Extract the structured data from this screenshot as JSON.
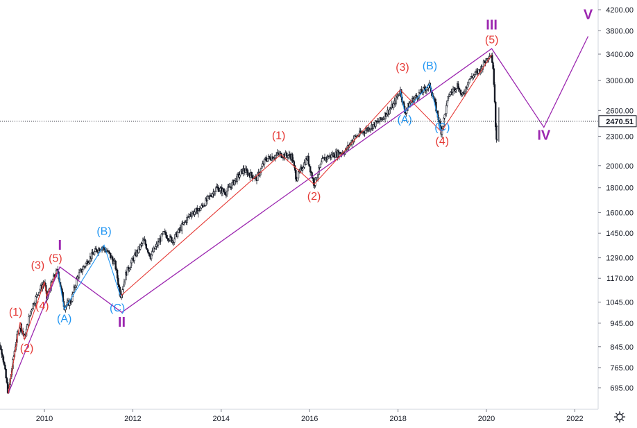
{
  "colors": {
    "background": "#ffffff",
    "candle": "#131722",
    "primary_wave": "#9c27b0",
    "intermediate_wave": "#e53935",
    "minor_wave": "#2196f3",
    "price_line": "#131722",
    "last_price_badge_bg": "#ffffff",
    "last_price_badge_text": "#131722"
  },
  "icons": {
    "settings": "gear-icon"
  },
  "chart_data": {
    "type": "candlestick",
    "scale": "log",
    "ylim": [
      640,
      4300
    ],
    "xlim": [
      2008.9,
      2022.7
    ],
    "yticks": [
      695,
      765,
      845,
      945,
      1045,
      1170,
      1290,
      1450,
      1600,
      1800,
      2000,
      2300,
      2600,
      3000,
      3400,
      3800,
      4200
    ],
    "ytick_labels": [
      "695.00",
      "765.00",
      "845.00",
      "945.00",
      "1045.00",
      "1170.00",
      "1290.00",
      "1450.00",
      "1600.00",
      "1800.00",
      "2000.00",
      "2300.00",
      "2600.00",
      "3000.00",
      "3400.00",
      "3800.00",
      "4200.00"
    ],
    "xticks": [
      2010,
      2012,
      2014,
      2016,
      2018,
      2020,
      2022
    ],
    "xtick_labels": [
      "2010",
      "2012",
      "2014",
      "2016",
      "2018",
      "2020",
      "2022"
    ],
    "last_price": 2470.51,
    "last_price_label": "2470.51",
    "price_path": [
      {
        "x": 2008.9,
        "y": 880
      },
      {
        "x": 2009.05,
        "y": 820
      },
      {
        "x": 2009.18,
        "y": 676
      },
      {
        "x": 2009.35,
        "y": 860
      },
      {
        "x": 2009.45,
        "y": 940
      },
      {
        "x": 2009.55,
        "y": 880
      },
      {
        "x": 2009.7,
        "y": 1010
      },
      {
        "x": 2009.85,
        "y": 1090
      },
      {
        "x": 2010.0,
        "y": 1150
      },
      {
        "x": 2010.05,
        "y": 1060
      },
      {
        "x": 2010.2,
        "y": 1170
      },
      {
        "x": 2010.3,
        "y": 1215
      },
      {
        "x": 2010.45,
        "y": 1020
      },
      {
        "x": 2010.6,
        "y": 1050
      },
      {
        "x": 2010.75,
        "y": 1180
      },
      {
        "x": 2011.0,
        "y": 1280
      },
      {
        "x": 2011.15,
        "y": 1330
      },
      {
        "x": 2011.3,
        "y": 1360
      },
      {
        "x": 2011.45,
        "y": 1320
      },
      {
        "x": 2011.6,
        "y": 1250
      },
      {
        "x": 2011.72,
        "y": 1075
      },
      {
        "x": 2011.85,
        "y": 1200
      },
      {
        "x": 2012.0,
        "y": 1280
      },
      {
        "x": 2012.25,
        "y": 1400
      },
      {
        "x": 2012.4,
        "y": 1300
      },
      {
        "x": 2012.7,
        "y": 1450
      },
      {
        "x": 2012.9,
        "y": 1400
      },
      {
        "x": 2013.3,
        "y": 1590
      },
      {
        "x": 2013.5,
        "y": 1620
      },
      {
        "x": 2013.9,
        "y": 1800
      },
      {
        "x": 2014.1,
        "y": 1760
      },
      {
        "x": 2014.5,
        "y": 1960
      },
      {
        "x": 2014.8,
        "y": 1880
      },
      {
        "x": 2015.0,
        "y": 2060
      },
      {
        "x": 2015.3,
        "y": 2110
      },
      {
        "x": 2015.6,
        "y": 2090
      },
      {
        "x": 2015.7,
        "y": 1880
      },
      {
        "x": 2015.95,
        "y": 2080
      },
      {
        "x": 2016.1,
        "y": 1830
      },
      {
        "x": 2016.3,
        "y": 2060
      },
      {
        "x": 2016.5,
        "y": 2100
      },
      {
        "x": 2016.8,
        "y": 2140
      },
      {
        "x": 2017.0,
        "y": 2280
      },
      {
        "x": 2017.3,
        "y": 2380
      },
      {
        "x": 2017.6,
        "y": 2480
      },
      {
        "x": 2017.9,
        "y": 2670
      },
      {
        "x": 2018.05,
        "y": 2870
      },
      {
        "x": 2018.15,
        "y": 2580
      },
      {
        "x": 2018.3,
        "y": 2720
      },
      {
        "x": 2018.55,
        "y": 2850
      },
      {
        "x": 2018.72,
        "y": 2930
      },
      {
        "x": 2018.85,
        "y": 2650
      },
      {
        "x": 2018.98,
        "y": 2350
      },
      {
        "x": 2019.15,
        "y": 2800
      },
      {
        "x": 2019.35,
        "y": 2940
      },
      {
        "x": 2019.45,
        "y": 2770
      },
      {
        "x": 2019.6,
        "y": 3010
      },
      {
        "x": 2019.85,
        "y": 3150
      },
      {
        "x": 2020.05,
        "y": 3380
      },
      {
        "x": 2020.12,
        "y": 3390
      },
      {
        "x": 2020.18,
        "y": 2900
      },
      {
        "x": 2020.22,
        "y": 2237
      },
      {
        "x": 2020.25,
        "y": 2470.51
      }
    ],
    "wave_lines": [
      {
        "name": "primary",
        "points": [
          {
            "x": 2009.18,
            "y": 676
          },
          {
            "x": 2010.35,
            "y": 1235
          },
          {
            "x": 2011.75,
            "y": 995
          },
          {
            "x": 2020.12,
            "y": 3490
          },
          {
            "x": 2021.3,
            "y": 2400
          },
          {
            "x": 2022.3,
            "y": 3700
          }
        ]
      },
      {
        "name": "intermediate",
        "points": [
          {
            "x": 2009.18,
            "y": 676
          },
          {
            "x": 2009.45,
            "y": 950
          },
          {
            "x": 2009.55,
            "y": 875
          },
          {
            "x": 2010.0,
            "y": 1150
          },
          {
            "x": 2010.05,
            "y": 1075
          },
          {
            "x": 2010.3,
            "y": 1215
          }
        ]
      },
      {
        "name": "intermediate",
        "points": [
          {
            "x": 2011.72,
            "y": 1075
          },
          {
            "x": 2015.35,
            "y": 2110
          },
          {
            "x": 2016.1,
            "y": 1830
          },
          {
            "x": 2018.05,
            "y": 2870
          },
          {
            "x": 2018.98,
            "y": 2350
          },
          {
            "x": 2020.12,
            "y": 3390
          }
        ]
      },
      {
        "name": "minor",
        "points": [
          {
            "x": 2010.3,
            "y": 1215
          },
          {
            "x": 2010.45,
            "y": 1010
          },
          {
            "x": 2011.35,
            "y": 1370
          },
          {
            "x": 2011.72,
            "y": 1075
          }
        ]
      },
      {
        "name": "minor",
        "points": [
          {
            "x": 2018.05,
            "y": 2870
          },
          {
            "x": 2018.15,
            "y": 2580
          },
          {
            "x": 2018.72,
            "y": 2950
          },
          {
            "x": 2018.98,
            "y": 2350
          }
        ]
      }
    ],
    "annotations": [
      {
        "text": "(1)",
        "wave": "intermediate",
        "x": 2009.35,
        "y": 980
      },
      {
        "text": "(2)",
        "wave": "intermediate",
        "x": 2009.6,
        "y": 825
      },
      {
        "text": "(3)",
        "wave": "intermediate",
        "x": 2009.85,
        "y": 1225
      },
      {
        "text": "(4)",
        "wave": "intermediate",
        "x": 2009.95,
        "y": 1010
      },
      {
        "text": "(5)",
        "wave": "intermediate",
        "x": 2010.25,
        "y": 1265
      },
      {
        "text": "I",
        "wave": "primary",
        "x": 2010.35,
        "y": 1340
      },
      {
        "text": "(A)",
        "wave": "minor",
        "x": 2010.45,
        "y": 950
      },
      {
        "text": "(B)",
        "wave": "minor",
        "x": 2011.35,
        "y": 1440
      },
      {
        "text": "(C)",
        "wave": "minor",
        "x": 2011.65,
        "y": 1000
      },
      {
        "text": "II",
        "wave": "primary",
        "x": 2011.75,
        "y": 930
      },
      {
        "text": "(1)",
        "wave": "intermediate",
        "x": 2015.3,
        "y": 2270
      },
      {
        "text": "(2)",
        "wave": "intermediate",
        "x": 2016.1,
        "y": 1700
      },
      {
        "text": "(3)",
        "wave": "intermediate",
        "x": 2018.1,
        "y": 3140
      },
      {
        "text": "(A)",
        "wave": "minor",
        "x": 2018.15,
        "y": 2450
      },
      {
        "text": "(B)",
        "wave": "minor",
        "x": 2018.72,
        "y": 3160
      },
      {
        "text": "(C)",
        "wave": "minor",
        "x": 2019.0,
        "y": 2360
      },
      {
        "text": "(4)",
        "wave": "intermediate",
        "x": 2019.0,
        "y": 2210
      },
      {
        "text": "(5)",
        "wave": "intermediate",
        "x": 2020.12,
        "y": 3580
      },
      {
        "text": "III",
        "wave": "primary",
        "x": 2020.12,
        "y": 3820
      },
      {
        "text": "IV",
        "wave": "primary",
        "x": 2021.3,
        "y": 2260
      },
      {
        "text": "V",
        "wave": "primary",
        "x": 2022.3,
        "y": 4020
      }
    ]
  }
}
